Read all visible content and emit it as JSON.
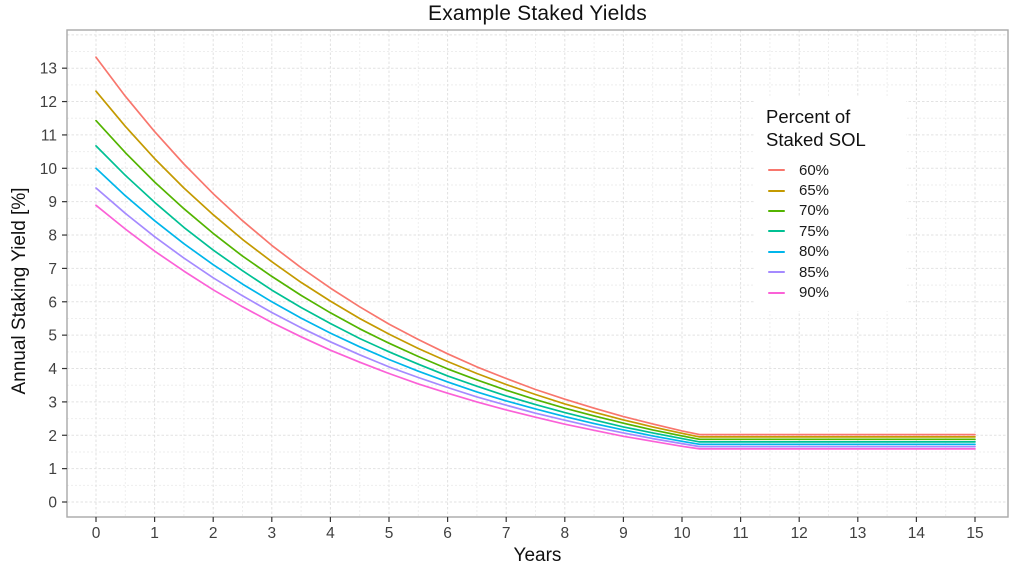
{
  "page": {
    "background": "#ffffff"
  },
  "colors": {
    "grid_major": "#e2e2e2",
    "grid_minor": "#eeeeee",
    "panel_border": "#a9a9a9",
    "tick_mark": "#333333",
    "axis_text": "#404040",
    "title_text": "#111111"
  },
  "legend": {
    "title_line1": "Percent of",
    "title_line2": "Staked SOL"
  },
  "chart_data": {
    "type": "line",
    "title": "Example Staked Yields",
    "xlabel": "Years",
    "ylabel": "Annual Staking Yield [%]",
    "legend_title": "Percent of Staked SOL",
    "legend_position": "inside-right",
    "grid": "major and minor, dashed light gray, white panel with gray border",
    "xlim": [
      -0.5,
      15.56
    ],
    "ylim": [
      -0.45,
      14.14
    ],
    "x_ticks": [
      0,
      1,
      2,
      3,
      4,
      5,
      6,
      7,
      8,
      9,
      10,
      11,
      12,
      13,
      14,
      15
    ],
    "y_ticks": [
      0,
      1,
      2,
      3,
      4,
      5,
      6,
      7,
      8,
      9,
      10,
      11,
      12,
      13
    ],
    "x_grid_minor": [
      0.5,
      1.5,
      2.5,
      3.5,
      4.5,
      5.5,
      6.5,
      7.5,
      8.5,
      9.5,
      10.5,
      11.5,
      12.5,
      13.5,
      14.5
    ],
    "y_grid_major_extra": [
      14
    ],
    "y_grid_minor": [
      0.5,
      1.5,
      2.5,
      3.5,
      4.5,
      5.5,
      6.5,
      7.5,
      8.5,
      9.5,
      10.5,
      11.5,
      12.5,
      13.5
    ],
    "x": [
      0,
      0.5,
      1,
      1.5,
      2,
      2.5,
      3,
      3.5,
      4,
      4.5,
      5,
      5.5,
      6,
      6.5,
      7,
      7.5,
      8,
      8.5,
      9,
      9.5,
      10,
      10.3,
      11,
      12,
      13,
      14,
      15
    ],
    "series": [
      {
        "name": "60%",
        "color": "#F8766D",
        "values": [
          13.33,
          12.16,
          11.1,
          10.13,
          9.24,
          8.43,
          7.69,
          7.02,
          6.41,
          5.85,
          5.33,
          4.87,
          4.44,
          4.05,
          3.7,
          3.37,
          3.08,
          2.81,
          2.56,
          2.34,
          2.13,
          2.02,
          2.02,
          2.02,
          2.02,
          2.02,
          2.02
        ]
      },
      {
        "name": "65%",
        "color": "#C49A00",
        "values": [
          12.31,
          11.26,
          10.29,
          9.41,
          8.61,
          7.87,
          7.2,
          6.58,
          6.02,
          5.5,
          5.03,
          4.6,
          4.21,
          3.85,
          3.52,
          3.22,
          2.94,
          2.69,
          2.46,
          2.25,
          2.06,
          1.95,
          1.95,
          1.95,
          1.95,
          1.95,
          1.95
        ]
      },
      {
        "name": "70%",
        "color": "#53B400",
        "values": [
          11.43,
          10.47,
          9.59,
          8.79,
          8.05,
          7.37,
          6.76,
          6.19,
          5.67,
          5.19,
          4.76,
          4.36,
          3.99,
          3.66,
          3.35,
          3.07,
          2.81,
          2.58,
          2.36,
          2.16,
          1.98,
          1.88,
          1.88,
          1.88,
          1.88,
          1.88,
          1.88
        ]
      },
      {
        "name": "75%",
        "color": "#00C094",
        "values": [
          10.67,
          9.79,
          8.98,
          8.23,
          7.55,
          6.93,
          6.35,
          5.83,
          5.35,
          4.9,
          4.5,
          4.13,
          3.78,
          3.47,
          3.18,
          2.92,
          2.68,
          2.46,
          2.25,
          2.07,
          1.9,
          1.8,
          1.8,
          1.8,
          1.8,
          1.8,
          1.8
        ]
      },
      {
        "name": "80%",
        "color": "#00B6EB",
        "values": [
          10.0,
          9.18,
          8.43,
          7.74,
          7.11,
          6.53,
          6.0,
          5.51,
          5.06,
          4.65,
          4.27,
          3.92,
          3.6,
          3.3,
          3.03,
          2.79,
          2.56,
          2.35,
          2.16,
          1.98,
          1.82,
          1.73,
          1.73,
          1.73,
          1.73,
          1.73,
          1.73
        ]
      },
      {
        "name": "85%",
        "color": "#A58AFF",
        "values": [
          9.41,
          8.65,
          7.95,
          7.31,
          6.72,
          6.18,
          5.68,
          5.22,
          4.8,
          4.41,
          4.05,
          3.73,
          3.43,
          3.15,
          2.9,
          2.66,
          2.45,
          2.25,
          2.07,
          1.9,
          1.75,
          1.66,
          1.66,
          1.66,
          1.66,
          1.66,
          1.66
        ]
      },
      {
        "name": "90%",
        "color": "#FB61D7",
        "values": [
          8.89,
          8.18,
          7.52,
          6.92,
          6.36,
          5.85,
          5.38,
          4.95,
          4.55,
          4.19,
          3.85,
          3.54,
          3.26,
          3.0,
          2.76,
          2.54,
          2.33,
          2.15,
          1.97,
          1.82,
          1.67,
          1.59,
          1.59,
          1.59,
          1.59,
          1.59,
          1.59
        ]
      }
    ]
  }
}
